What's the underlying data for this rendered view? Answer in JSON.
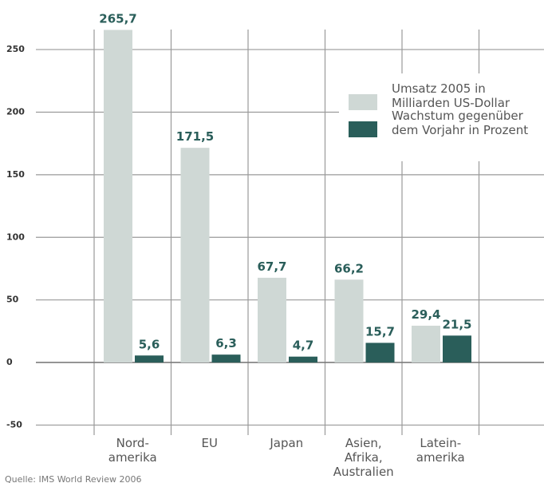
{
  "chart_data": {
    "type": "bar",
    "source": "Quelle: IMS World Review 2006",
    "categories": [
      "Nord-\namerika",
      "EU",
      "Japan",
      "Asien,\nAfrika,\nAustralien",
      "Latein-\namerika"
    ],
    "series": [
      {
        "name": "Umsatz 2005 in\nMilliarden US-Dollar",
        "color": "#cfd8d5",
        "values": [
          265.7,
          171.5,
          67.7,
          66.2,
          29.4
        ],
        "value_labels": [
          "265,7",
          "171,5",
          "67,7",
          "66,2",
          "29,4"
        ]
      },
      {
        "name": "Wachstum gegenüber\ndem Vorjahr in Prozent",
        "color": "#2a5e5a",
        "values": [
          5.6,
          6.3,
          4.7,
          15.7,
          21.5
        ],
        "value_labels": [
          "5,6",
          "6,3",
          "4,7",
          "15,7",
          "21,5"
        ]
      }
    ],
    "ylim": [
      -58,
      266
    ],
    "yticks": [
      -50,
      0,
      50,
      100,
      150,
      200,
      250
    ],
    "grid": true
  }
}
